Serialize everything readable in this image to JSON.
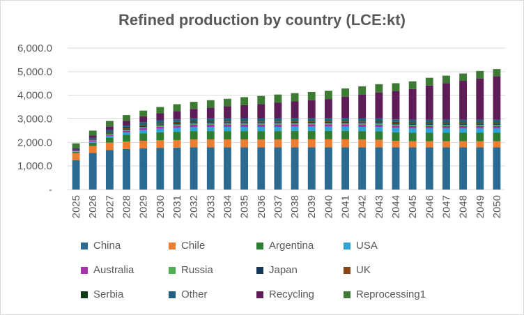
{
  "chart_data": {
    "type": "bar",
    "stacked": true,
    "title": "Refined production by country (LCE:kt)",
    "xlabel": "",
    "ylabel": "",
    "ylim": [
      0,
      6000
    ],
    "yticks": [
      "-",
      "1,000.0",
      "2,000.0",
      "3,000.0",
      "4,000.0",
      "5,000.0",
      "6,000.0"
    ],
    "grid": true,
    "legend_position": "bottom",
    "categories": [
      "2025",
      "2026",
      "2027",
      "2028",
      "2029",
      "2030",
      "2031",
      "2032",
      "2033",
      "2034",
      "2035",
      "2036",
      "2037",
      "2038",
      "2039",
      "2040",
      "2041",
      "2042",
      "2043",
      "2044",
      "2045",
      "2046",
      "2047",
      "2048",
      "2049",
      "2050"
    ],
    "series": [
      {
        "name": "China",
        "color": "#2b6a91",
        "values": [
          1250,
          1550,
          1680,
          1720,
          1750,
          1770,
          1780,
          1790,
          1790,
          1790,
          1790,
          1790,
          1790,
          1790,
          1790,
          1790,
          1790,
          1790,
          1790,
          1790,
          1790,
          1790,
          1790,
          1790,
          1790,
          1790
        ]
      },
      {
        "name": "Chile",
        "color": "#ed7d31",
        "values": [
          300,
          300,
          310,
          320,
          320,
          320,
          320,
          330,
          330,
          330,
          330,
          330,
          330,
          340,
          340,
          340,
          340,
          330,
          320,
          280,
          260,
          260,
          260,
          260,
          260,
          260
        ]
      },
      {
        "name": "Argentina",
        "color": "#2f7d32",
        "values": [
          50,
          140,
          220,
          280,
          320,
          340,
          350,
          360,
          360,
          360,
          360,
          360,
          360,
          360,
          360,
          360,
          360,
          360,
          360,
          360,
          360,
          360,
          360,
          360,
          360,
          360
        ]
      },
      {
        "name": "USA",
        "color": "#2ea3d8",
        "values": [
          20,
          40,
          70,
          100,
          130,
          150,
          160,
          170,
          170,
          180,
          180,
          180,
          180,
          180,
          180,
          180,
          180,
          180,
          180,
          180,
          180,
          180,
          180,
          180,
          180,
          180
        ]
      },
      {
        "name": "Australia",
        "color": "#a633a8",
        "values": [
          20,
          40,
          60,
          70,
          80,
          90,
          100,
          100,
          100,
          100,
          100,
          100,
          100,
          100,
          100,
          100,
          100,
          100,
          100,
          100,
          100,
          100,
          100,
          100,
          100,
          100
        ]
      },
      {
        "name": "Russia",
        "color": "#4caf50",
        "values": [
          10,
          20,
          30,
          40,
          50,
          50,
          50,
          50,
          50,
          50,
          50,
          50,
          50,
          50,
          50,
          50,
          50,
          50,
          50,
          50,
          50,
          50,
          50,
          50,
          50,
          50
        ]
      },
      {
        "name": "Japan",
        "color": "#14375a",
        "values": [
          20,
          30,
          40,
          40,
          50,
          50,
          50,
          50,
          50,
          50,
          50,
          50,
          50,
          50,
          50,
          50,
          50,
          50,
          50,
          50,
          50,
          50,
          50,
          50,
          50,
          50
        ]
      },
      {
        "name": "UK",
        "color": "#8b4513",
        "values": [
          0,
          10,
          20,
          30,
          30,
          30,
          30,
          30,
          30,
          30,
          30,
          30,
          30,
          30,
          30,
          30,
          30,
          30,
          30,
          30,
          30,
          30,
          30,
          30,
          30,
          30
        ]
      },
      {
        "name": "Serbia",
        "color": "#0f3d1a",
        "values": [
          0,
          10,
          20,
          30,
          30,
          30,
          30,
          30,
          30,
          30,
          30,
          30,
          30,
          30,
          30,
          30,
          30,
          30,
          30,
          30,
          30,
          30,
          30,
          30,
          30,
          30
        ]
      },
      {
        "name": "Other",
        "color": "#1e5f7e",
        "values": [
          30,
          60,
          80,
          90,
          100,
          110,
          110,
          110,
          110,
          110,
          110,
          110,
          110,
          110,
          110,
          110,
          110,
          110,
          110,
          110,
          110,
          110,
          110,
          110,
          110,
          110
        ]
      },
      {
        "name": "Recycling",
        "color": "#5e1d57",
        "values": [
          50,
          100,
          150,
          200,
          250,
          300,
          350,
          400,
          450,
          500,
          550,
          600,
          650,
          700,
          750,
          800,
          900,
          1000,
          1100,
          1200,
          1300,
          1450,
          1550,
          1650,
          1750,
          1850
        ]
      },
      {
        "name": "Reprocessing1",
        "color": "#3d7a33",
        "values": [
          210,
          200,
          230,
          240,
          240,
          260,
          290,
          300,
          320,
          320,
          340,
          340,
          350,
          350,
          350,
          350,
          350,
          350,
          350,
          330,
          330,
          330,
          320,
          310,
          320,
          300
        ]
      }
    ]
  }
}
